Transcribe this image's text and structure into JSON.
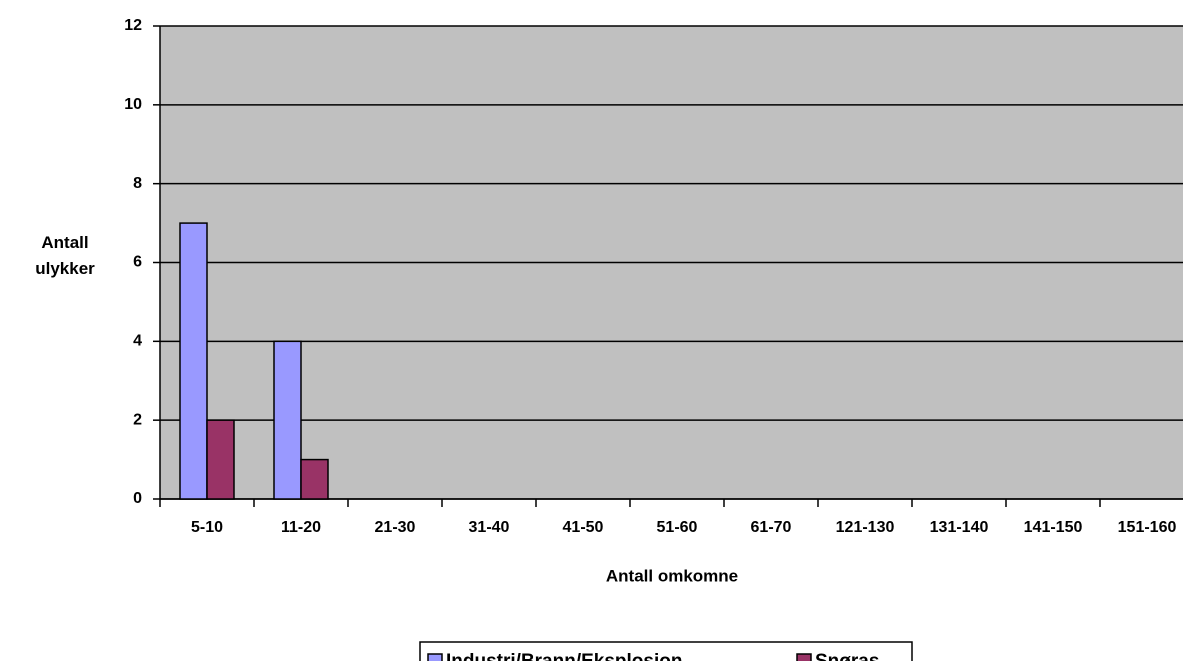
{
  "chart_data": {
    "type": "bar",
    "x_label": "Antall omkomne",
    "y_label": "Antall ulykker",
    "categories": [
      "5-10",
      "11-20",
      "21-30",
      "31-40",
      "41-50",
      "51-60",
      "61-70",
      "121-130",
      "131-140",
      "141-150",
      "151-160"
    ],
    "series": [
      {
        "name": "Industri/Brann/Eksplosjon",
        "color": "#9999ff",
        "values": [
          7,
          4,
          0,
          0,
          0,
          0,
          0,
          0,
          0,
          0,
          0
        ]
      },
      {
        "name": "Snøras",
        "color": "#993366",
        "values": [
          2,
          1,
          0,
          0,
          0,
          0,
          0,
          0,
          0,
          0,
          0
        ]
      }
    ],
    "ylim": [
      0,
      12
    ],
    "yticks": [
      0,
      2,
      4,
      6,
      8,
      10,
      12
    ],
    "grid": true,
    "legend": "bottom"
  }
}
